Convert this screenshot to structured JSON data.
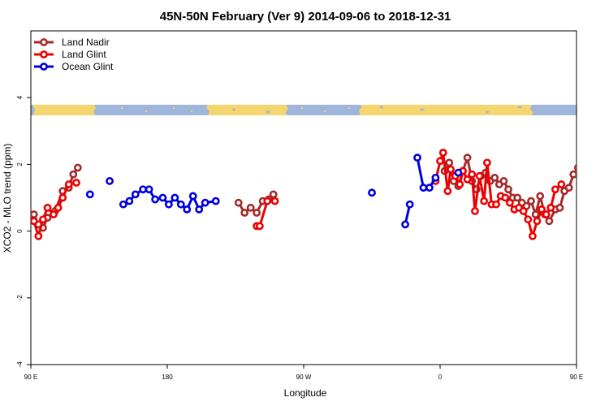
{
  "chart_data": {
    "type": "line",
    "title": "45N-50N February (Ver 9)   2014-09-06 to 2018-12-31",
    "xlabel": "Longitude",
    "ylabel": "XCO2 - MLO trend (ppm)",
    "xlim": [
      90,
      450
    ],
    "ylim": [
      -4,
      6
    ],
    "x_ticks": [
      {
        "value": 90,
        "label": "90 E"
      },
      {
        "value": 180,
        "label": "180"
      },
      {
        "value": 270,
        "label": "90 W"
      },
      {
        "value": 360,
        "label": "0"
      },
      {
        "value": 450,
        "label": "90 E"
      },
      {
        "value": 540,
        "label": "180"
      }
    ],
    "y_ticks": [
      {
        "value": 4,
        "label": "4"
      },
      {
        "value": 2,
        "label": "2"
      },
      {
        "value": 0,
        "label": "0"
      },
      {
        "value": -2,
        "label": "-2"
      },
      {
        "value": -4,
        "label": "-4"
      }
    ],
    "legend_position": "top-left",
    "land_band_color": "#f5d56e",
    "ocean_band_color": "#9db6d9",
    "series": [
      {
        "name": "Land Nadir",
        "color": "#a52a2a",
        "segments": [
          [
            [
              92,
              0.5
            ],
            [
              95,
              0.2
            ],
            [
              98,
              0.1
            ],
            [
              101,
              0.4
            ],
            [
              106,
              0.6
            ],
            [
              111,
              1.2
            ],
            [
              115,
              1.3
            ],
            [
              118,
              1.7
            ],
            [
              121,
              1.9
            ]
          ],
          [
            [
              227,
              0.85
            ],
            [
              231,
              0.55
            ],
            [
              235,
              0.7
            ],
            [
              239,
              0.55
            ],
            [
              243,
              0.9
            ],
            [
              247,
              0.95
            ],
            [
              250,
              1.1
            ]
          ],
          [
            [
              363,
              1.8
            ],
            [
              366,
              2.05
            ],
            [
              369,
              1.5
            ],
            [
              372,
              1.35
            ],
            [
              375,
              1.8
            ],
            [
              378,
              2.2
            ],
            [
              381,
              1.5
            ],
            [
              384,
              1.25
            ],
            [
              387,
              1.65
            ],
            [
              390,
              1.75
            ],
            [
              393,
              1.5
            ],
            [
              396,
              1.6
            ],
            [
              399,
              1.4
            ],
            [
              402,
              1.5
            ],
            [
              405,
              1.25
            ],
            [
              408,
              1.0
            ],
            [
              411,
              1.0
            ],
            [
              414,
              0.85
            ],
            [
              417,
              0.75
            ],
            [
              420,
              0.9
            ],
            [
              423,
              0.5
            ],
            [
              426,
              1.05
            ],
            [
              429,
              0.5
            ],
            [
              432,
              0.3
            ],
            [
              436,
              0.65
            ],
            [
              439,
              0.7
            ],
            [
              442,
              1.2
            ],
            [
              445,
              1.3
            ],
            [
              448,
              1.7
            ],
            [
              451,
              1.9
            ]
          ]
        ]
      },
      {
        "name": "Land Glint",
        "color": "#ee0000",
        "segments": [
          [
            [
              92,
              0.3
            ],
            [
              95,
              -0.15
            ],
            [
              98,
              0.35
            ],
            [
              101,
              0.7
            ],
            [
              105,
              0.5
            ],
            [
              108,
              0.7
            ],
            [
              111,
              1.0
            ],
            [
              115,
              1.4
            ],
            [
              120,
              1.45
            ]
          ],
          [
            [
              239,
              0.15
            ],
            [
              241,
              0.15
            ],
            [
              246,
              0.9
            ],
            [
              251,
              0.9
            ]
          ],
          [
            [
              357,
              1.5
            ],
            [
              360,
              2.1
            ],
            [
              362,
              2.35
            ],
            [
              365,
              1.2
            ],
            [
              367,
              1.85
            ],
            [
              370,
              1.65
            ],
            [
              373,
              1.4
            ],
            [
              375,
              1.8
            ],
            [
              378,
              1.55
            ],
            [
              381,
              1.7
            ],
            [
              383,
              0.6
            ],
            [
              386,
              1.65
            ],
            [
              389,
              0.9
            ],
            [
              391,
              2.05
            ],
            [
              394,
              0.8
            ],
            [
              397,
              0.8
            ],
            [
              400,
              1.05
            ],
            [
              403,
              1.0
            ],
            [
              406,
              0.85
            ],
            [
              409,
              0.65
            ],
            [
              412,
              0.7
            ],
            [
              415,
              0.6
            ],
            [
              418,
              0.35
            ],
            [
              421,
              -0.15
            ],
            [
              424,
              0.3
            ],
            [
              427,
              0.65
            ],
            [
              430,
              0.5
            ],
            [
              433,
              0.7
            ],
            [
              436,
              1.25
            ],
            [
              440,
              1.4
            ]
          ]
        ]
      },
      {
        "name": "Ocean Glint",
        "color": "#0000dd",
        "segments": [
          [
            [
              129,
              1.1
            ]
          ],
          [
            [
              142,
              1.5
            ]
          ],
          [
            [
              151,
              0.8
            ],
            [
              155,
              0.9
            ],
            [
              159,
              1.1
            ],
            [
              164,
              1.25
            ],
            [
              168,
              1.25
            ],
            [
              172,
              0.95
            ],
            [
              177,
              1.0
            ],
            [
              181,
              0.8
            ],
            [
              185,
              1.0
            ],
            [
              189,
              0.8
            ],
            [
              193,
              0.65
            ],
            [
              197,
              1.05
            ],
            [
              201,
              0.65
            ],
            [
              205,
              0.85
            ],
            [
              212,
              0.9
            ]
          ],
          [
            [
              315,
              1.15
            ]
          ],
          [
            [
              337,
              0.2
            ],
            [
              340,
              0.8
            ]
          ],
          [
            [
              345,
              2.2
            ],
            [
              349,
              1.3
            ],
            [
              353,
              1.3
            ],
            [
              357,
              1.6
            ]
          ],
          [
            [
              372,
              1.75
            ]
          ],
          [
            [
              454,
              1.1
            ]
          ],
          [
            [
              466,
              1.5
            ]
          ],
          [
            [
              476,
              0.8
            ],
            [
              480,
              0.9
            ],
            [
              484,
              1.1
            ],
            [
              488,
              1.25
            ],
            [
              492,
              1.2
            ]
          ]
        ]
      }
    ]
  }
}
